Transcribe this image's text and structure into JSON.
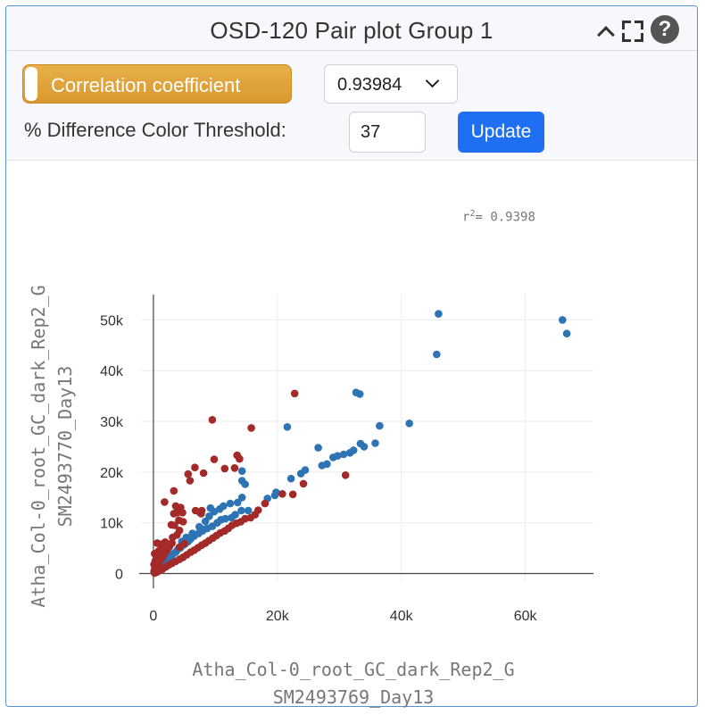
{
  "header": {
    "title": "OSD-120 Pair plot Group 1"
  },
  "controls": {
    "toggle_label": "Correlation coefficient",
    "select_value": "0.93984",
    "threshold_label": "% Difference Color Threshold:",
    "threshold_value": "37",
    "update_label": "Update"
  },
  "annotation": {
    "r2_prefix": "r",
    "r2_sup": "2",
    "r2_value": "= 0.9398"
  },
  "colors": {
    "accent": "#e0a43c",
    "primary": "#1f6ff2",
    "within": "#2e74b5",
    "outside": "#a32a29"
  },
  "chart_data": {
    "type": "scatter",
    "xlabel": [
      "Atha_Col-0_root_GC_dark_Rep2_G",
      "SM2493769_Day13"
    ],
    "ylabel": [
      "Atha_Col-0_root_GC_dark_Rep2_G",
      "SM2493770_Day13"
    ],
    "xlim": [
      -2000,
      71000
    ],
    "ylim": [
      -1500,
      55000
    ],
    "xticks": [
      0,
      20000,
      40000,
      60000
    ],
    "xtick_labels": [
      "0",
      "20k",
      "40k",
      "60k"
    ],
    "yticks": [
      0,
      10000,
      20000,
      30000,
      40000,
      50000
    ],
    "ytick_labels": [
      "0",
      "10k",
      "20k",
      "30k",
      "40k",
      "50k"
    ],
    "grid": true,
    "series": [
      {
        "color": "#2e74b5",
        "points": [
          [
            46000,
            51200
          ],
          [
            66000,
            50000
          ],
          [
            66700,
            47300
          ],
          [
            45700,
            43200
          ],
          [
            32700,
            35700
          ],
          [
            33300,
            35400
          ],
          [
            41300,
            29600
          ],
          [
            36500,
            29100
          ],
          [
            21600,
            28900
          ],
          [
            35800,
            25700
          ],
          [
            33400,
            25600
          ],
          [
            34000,
            25000
          ],
          [
            32300,
            24300
          ],
          [
            31700,
            23800
          ],
          [
            30700,
            23500
          ],
          [
            29700,
            23200
          ],
          [
            29000,
            22900
          ],
          [
            26600,
            24800
          ],
          [
            28000,
            21600
          ],
          [
            27200,
            21300
          ],
          [
            24500,
            20400
          ],
          [
            23800,
            19700
          ],
          [
            22200,
            18700
          ],
          [
            19800,
            16000
          ],
          [
            19600,
            15400
          ],
          [
            18400,
            14800
          ],
          [
            14300,
            20200
          ],
          [
            14300,
            18300
          ],
          [
            14800,
            17600
          ],
          [
            14300,
            15000
          ],
          [
            13600,
            14000
          ],
          [
            12400,
            13800
          ],
          [
            11300,
            13300
          ],
          [
            10700,
            12700
          ],
          [
            9800,
            12200
          ],
          [
            9200,
            12900
          ],
          [
            7500,
            12000
          ],
          [
            14200,
            12400
          ],
          [
            15300,
            12400
          ],
          [
            13200,
            11600
          ],
          [
            12600,
            11000
          ],
          [
            11600,
            10800
          ],
          [
            10900,
            10600
          ],
          [
            10300,
            10000
          ],
          [
            9500,
            9300
          ],
          [
            8700,
            8900
          ],
          [
            8200,
            8700
          ],
          [
            7900,
            8400
          ],
          [
            7300,
            7900
          ],
          [
            6600,
            7400
          ],
          [
            6000,
            6800
          ],
          [
            5600,
            6300
          ],
          [
            5100,
            5800
          ],
          [
            4800,
            5600
          ],
          [
            4400,
            5100
          ],
          [
            3900,
            4700
          ],
          [
            3600,
            4200
          ],
          [
            3200,
            3900
          ],
          [
            2900,
            3500
          ],
          [
            2500,
            3100
          ],
          [
            2300,
            2800
          ],
          [
            2000,
            2600
          ],
          [
            1700,
            2300
          ],
          [
            1500,
            2000
          ],
          [
            1200,
            1700
          ],
          [
            900,
            1400
          ],
          [
            700,
            1100
          ],
          [
            500,
            800
          ],
          [
            300,
            500
          ],
          [
            200,
            300
          ],
          [
            6300,
            7900
          ],
          [
            5300,
            7100
          ],
          [
            4600,
            6300
          ],
          [
            7400,
            9200
          ],
          [
            8400,
            10300
          ],
          [
            9000,
            11300
          ]
        ]
      },
      {
        "color": "#a32a29",
        "points": [
          [
            22800,
            35500
          ],
          [
            9500,
            30300
          ],
          [
            15800,
            28700
          ],
          [
            13500,
            23300
          ],
          [
            9800,
            22500
          ],
          [
            13900,
            22600
          ],
          [
            11500,
            20700
          ],
          [
            13100,
            20800
          ],
          [
            8100,
            19800
          ],
          [
            6700,
            20900
          ],
          [
            5600,
            19600
          ],
          [
            31000,
            19400
          ],
          [
            24200,
            17700
          ],
          [
            20800,
            15700
          ],
          [
            22500,
            15600
          ],
          [
            5900,
            18300
          ],
          [
            3300,
            16300
          ],
          [
            3600,
            13300
          ],
          [
            4400,
            13000
          ],
          [
            1800,
            14100
          ],
          [
            3300,
            11800
          ],
          [
            3800,
            12000
          ],
          [
            4700,
            12000
          ],
          [
            6800,
            12400
          ],
          [
            7800,
            12400
          ],
          [
            4800,
            10200
          ],
          [
            4100,
            10500
          ],
          [
            3400,
            9500
          ],
          [
            2900,
            9600
          ],
          [
            7700,
            11800
          ],
          [
            18000,
            13800
          ],
          [
            16900,
            12500
          ],
          [
            16400,
            11600
          ],
          [
            15700,
            11000
          ],
          [
            14800,
            10800
          ],
          [
            14100,
            10200
          ],
          [
            13400,
            9900
          ],
          [
            12700,
            9500
          ],
          [
            12100,
            8900
          ],
          [
            11500,
            8400
          ],
          [
            10800,
            8000
          ],
          [
            10200,
            7500
          ],
          [
            9600,
            7000
          ],
          [
            9000,
            6500
          ],
          [
            8400,
            6000
          ],
          [
            7800,
            5600
          ],
          [
            7200,
            5100
          ],
          [
            6600,
            4600
          ],
          [
            6000,
            4200
          ],
          [
            5400,
            3700
          ],
          [
            4800,
            3200
          ],
          [
            4200,
            2800
          ],
          [
            3600,
            2400
          ],
          [
            3000,
            2000
          ],
          [
            2500,
            1700
          ],
          [
            2000,
            1300
          ],
          [
            1500,
            900
          ],
          [
            1000,
            600
          ],
          [
            600,
            300
          ],
          [
            200,
            100
          ],
          [
            3000,
            6000
          ],
          [
            2600,
            5300
          ],
          [
            2200,
            4600
          ],
          [
            1800,
            3900
          ],
          [
            1500,
            3200
          ],
          [
            1200,
            2700
          ],
          [
            900,
            2200
          ],
          [
            700,
            1700
          ],
          [
            400,
            1200
          ],
          [
            200,
            800
          ],
          [
            100,
            400
          ],
          [
            3100,
            7100
          ],
          [
            1900,
            6200
          ],
          [
            1300,
            5200
          ],
          [
            800,
            4400
          ],
          [
            500,
            3400
          ],
          [
            300,
            2500
          ],
          [
            100,
            1800
          ],
          [
            4200,
            8500
          ],
          [
            3800,
            7600
          ],
          [
            4200,
            5200
          ],
          [
            5000,
            5900
          ],
          [
            1100,
            5800
          ],
          [
            2500,
            5700
          ],
          [
            600,
            6000
          ],
          [
            200,
            3900
          ]
        ]
      }
    ]
  }
}
